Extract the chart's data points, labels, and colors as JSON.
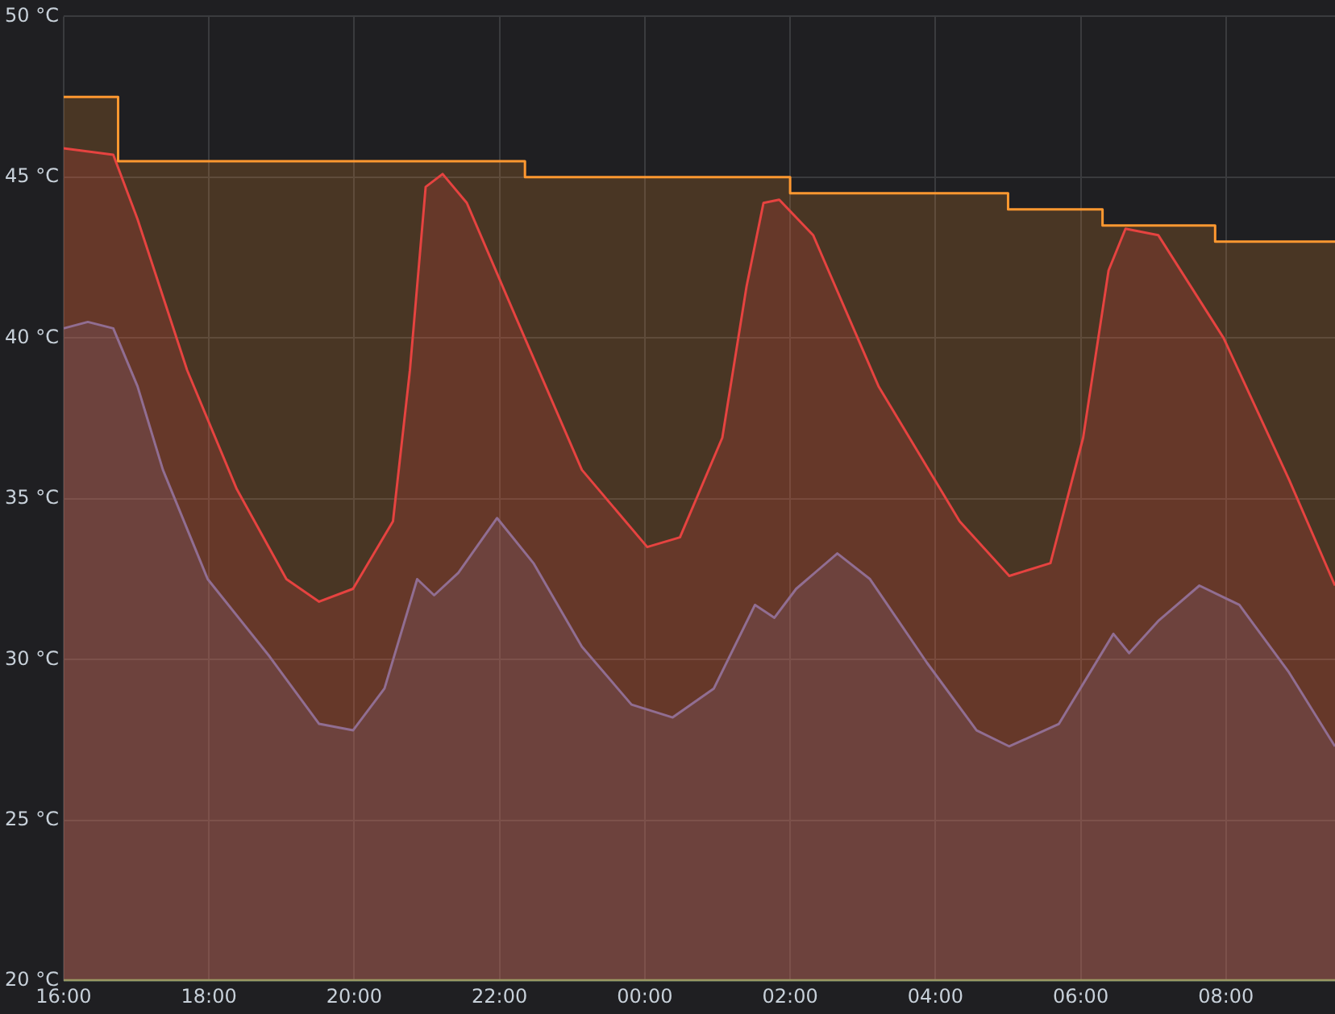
{
  "chart_data": {
    "type": "area",
    "xlim": [
      "--01-01T16:00",
      "--01-02T09:30"
    ],
    "xticks": [
      {
        "value": "--01-01T16:00",
        "label": "16:00"
      },
      {
        "value": "--01-01T18:00",
        "label": "18:00"
      },
      {
        "value": "--01-01T20:00",
        "label": "20:00"
      },
      {
        "value": "--01-01T22:00",
        "label": "22:00"
      },
      {
        "value": "--01-02T00:00",
        "label": "00:00"
      },
      {
        "value": "--01-02T02:00",
        "label": "02:00"
      },
      {
        "value": "--01-02T04:00",
        "label": "04:00"
      },
      {
        "value": "--01-02T06:00",
        "label": "06:00"
      },
      {
        "value": "--01-02T08:00",
        "label": "08:00"
      }
    ],
    "ylim": [
      20,
      50
    ],
    "yticks": [
      {
        "value": 20,
        "label": "20 °C"
      },
      {
        "value": 25,
        "label": "25 °C"
      },
      {
        "value": 30,
        "label": "30 °C"
      },
      {
        "value": 35,
        "label": "35 °C"
      },
      {
        "value": 40,
        "label": "40 °C"
      },
      {
        "value": 45,
        "label": "45 °C"
      },
      {
        "value": 50,
        "label": "50 °C"
      }
    ],
    "grid": true,
    "legend": false,
    "series": [
      {
        "color": "#ff9830",
        "x": [
          "--01-01T16:00",
          "--01-01T16:45",
          "--01-01T16:45",
          "--01-01T22:21",
          "--01-01T22:21",
          "--01-02T02:00",
          "--01-02T02:00",
          "--01-02T05:00",
          "--01-02T05:00",
          "--01-02T06:18",
          "--01-02T06:18",
          "--01-02T07:51",
          "--01-02T07:51",
          "--01-02T09:30"
        ],
        "values": [
          47.5,
          47.5,
          45.5,
          45.5,
          45.0,
          45.0,
          44.5,
          44.5,
          44.0,
          44.0,
          43.5,
          43.5,
          43.0,
          43.0
        ]
      },
      {
        "color": "#e02f44",
        "x": [
          "--01-01T16:00",
          "--01-01T16:41",
          "--01-01T17:01",
          "--01-01T17:42",
          "--01-01T18:23",
          "--01-01T19:04",
          "--01-01T19:31",
          "--01-01T19:59",
          "--01-01T20:32",
          "--01-01T20:46",
          "--01-01T20:59",
          "--01-01T21:13",
          "--01-01T21:33",
          "--01-01T22:14",
          "--01-01T23:08",
          "--01-02T00:02",
          "--01-02T00:29",
          "--01-02T01:04",
          "--01-02T01:24",
          "--01-02T01:38",
          "--01-02T01:51",
          "--01-02T02:19",
          "--01-02T03:13",
          "--01-02T04:20",
          "--01-02T05:01",
          "--01-02T05:35",
          "--01-02T06:02",
          "--01-02T06:23",
          "--01-02T06:37",
          "--01-02T07:04",
          "--01-02T07:58",
          "--01-02T08:52",
          "--01-02T09:30"
        ],
        "values": [
          45.9,
          45.7,
          43.7,
          39.0,
          35.3,
          32.5,
          31.8,
          32.2,
          34.3,
          39.0,
          44.7,
          45.1,
          44.2,
          40.6,
          35.9,
          33.5,
          33.8,
          36.9,
          41.6,
          44.2,
          44.3,
          43.2,
          38.5,
          34.3,
          32.6,
          33.0,
          36.9,
          42.1,
          43.4,
          43.2,
          40.0,
          35.6,
          32.3
        ]
      },
      {
        "color": "#6070c0",
        "x": [
          "--01-01T16:00",
          "--01-01T16:20",
          "--01-01T16:41",
          "--01-01T17:01",
          "--01-01T17:22",
          "--01-01T17:59",
          "--01-01T18:50",
          "--01-01T19:31",
          "--01-01T19:59",
          "--01-01T20:25",
          "--01-01T20:52",
          "--01-01T21:06",
          "--01-01T21:26",
          "--01-01T21:58",
          "--01-01T22:28",
          "--01-01T23:08",
          "--01-01T23:49",
          "--01-02T00:23",
          "--01-02T00:57",
          "--01-02T01:31",
          "--01-02T01:47",
          "--01-02T02:05",
          "--01-02T02:39",
          "--01-02T03:06",
          "--01-02T03:53",
          "--01-02T04:34",
          "--01-02T05:01",
          "--01-02T05:42",
          "--01-02T06:27",
          "--01-02T06:40",
          "--01-02T07:04",
          "--01-02T07:38",
          "--01-02T08:11",
          "--01-02T08:52",
          "--01-02T09:30"
        ],
        "values": [
          40.3,
          40.5,
          40.3,
          38.5,
          35.9,
          32.5,
          30.1,
          28.0,
          27.8,
          29.1,
          32.5,
          32.0,
          32.7,
          34.4,
          33.0,
          30.4,
          28.6,
          28.2,
          29.1,
          31.7,
          31.3,
          32.2,
          33.3,
          32.5,
          29.9,
          27.8,
          27.3,
          28.0,
          30.8,
          30.2,
          31.2,
          32.3,
          31.7,
          29.6,
          27.3
        ]
      },
      {
        "type": "line",
        "color": "#73bf69",
        "x": [
          "--01-01T16:00",
          "--01-02T09:30"
        ],
        "values": [
          20,
          20
        ]
      }
    ]
  }
}
